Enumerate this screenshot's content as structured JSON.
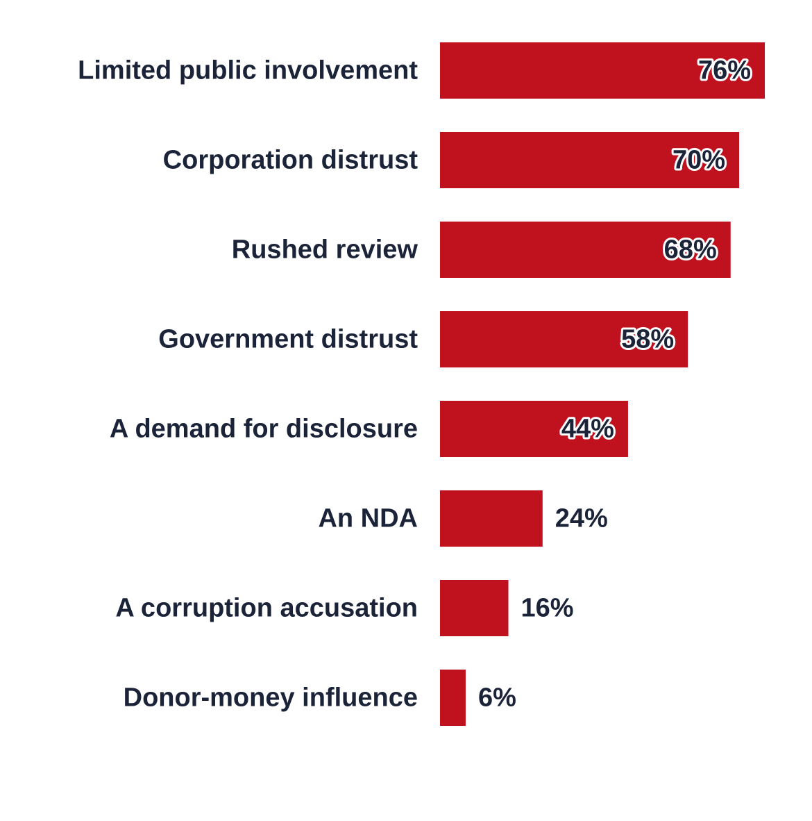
{
  "chart_data": {
    "type": "bar",
    "orientation": "horizontal",
    "title": "",
    "xlabel": "",
    "ylabel": "",
    "xlim": [
      0,
      76
    ],
    "grid": false,
    "legend": "none",
    "bar_color": "#c0111f",
    "text_color": "#1b2338",
    "categories": [
      "Limited public involvement",
      "Corporation distrust",
      "Rushed review",
      "Government distrust",
      "A demand for disclosure",
      "An NDA",
      "A corruption accusation",
      "Donor-money influence"
    ],
    "values": [
      76,
      70,
      68,
      58,
      44,
      24,
      16,
      6
    ],
    "value_labels": [
      "76%",
      "70%",
      "68%",
      "58%",
      "44%",
      "24%",
      "16%",
      "6%"
    ]
  }
}
